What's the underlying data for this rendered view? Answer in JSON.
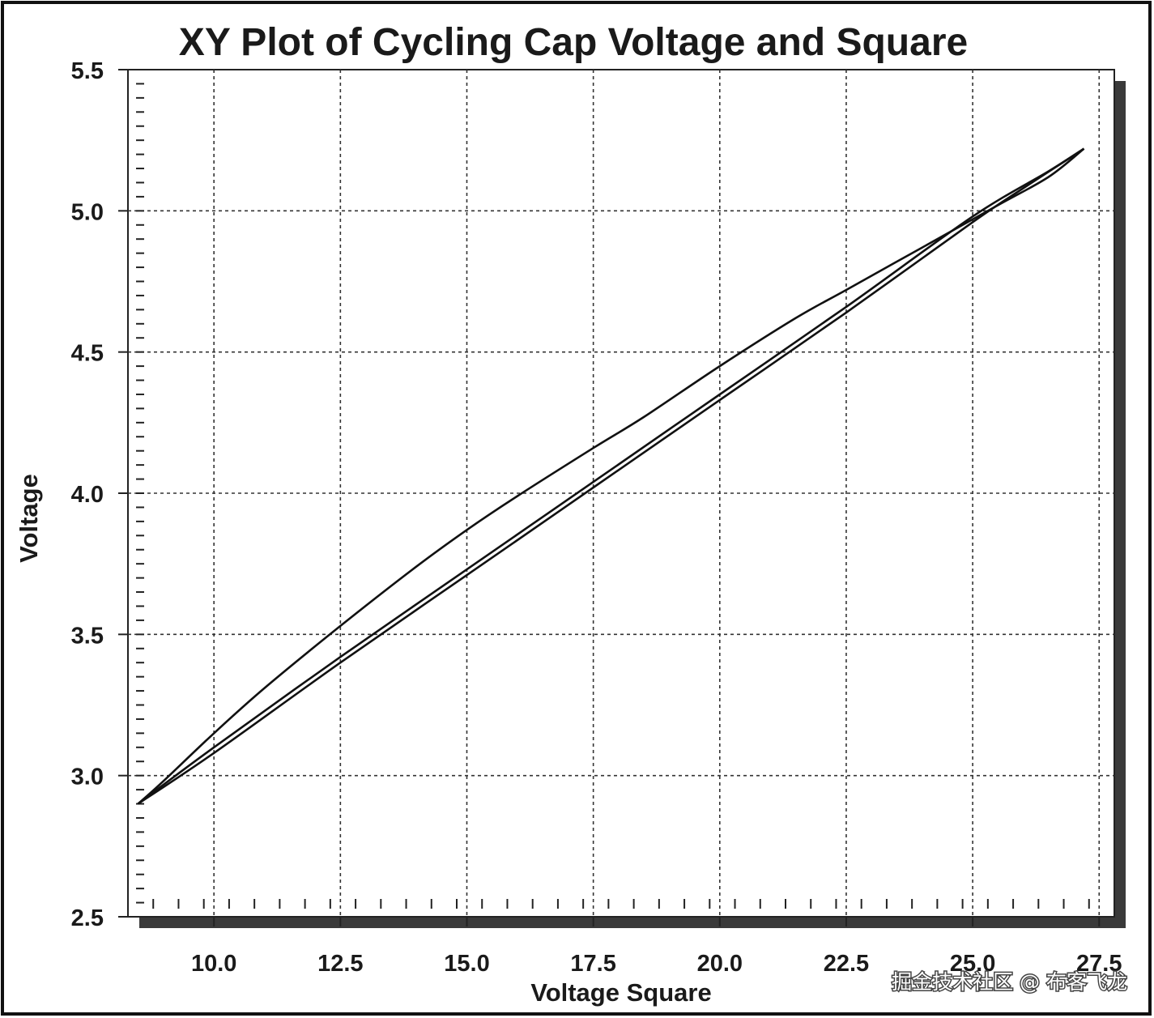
{
  "chart_data": {
    "type": "line",
    "title": "XY Plot of Cycling Cap Voltage and Square",
    "xlabel": "Voltage Square",
    "ylabel": "Voltage",
    "xlim": [
      8.3,
      27.8
    ],
    "ylim": [
      2.5,
      5.5
    ],
    "xticks": [
      "10.0",
      "12.5",
      "15.0",
      "17.5",
      "20.0",
      "22.5",
      "25.0",
      "27.5"
    ],
    "yticks": [
      "2.5",
      "3.0",
      "3.5",
      "4.0",
      "4.5",
      "5.0",
      "5.5"
    ],
    "grid": true,
    "legend": "none",
    "series": [
      {
        "x": [
          8.5,
          9.0,
          10.0,
          11.0,
          12.5,
          14.0,
          15.0,
          16.0,
          17.5,
          18.5,
          20.0,
          21.5,
          22.5,
          24.0,
          25.5,
          26.5,
          27.2
        ],
        "y": [
          2.9,
          2.98,
          3.15,
          3.31,
          3.53,
          3.74,
          3.87,
          3.99,
          4.16,
          4.27,
          4.45,
          4.62,
          4.72,
          4.87,
          5.02,
          5.12,
          5.22
        ]
      },
      {
        "x": [
          27.2,
          26.0,
          25.0,
          22.5,
          20.0,
          17.5,
          15.0,
          12.5,
          10.0,
          8.5
        ],
        "y": [
          5.22,
          5.08,
          4.96,
          4.64,
          4.33,
          4.02,
          3.71,
          3.4,
          3.08,
          2.9
        ]
      },
      {
        "x": [
          8.5,
          10.0,
          12.5,
          15.0,
          17.5,
          20.0,
          22.5,
          25.0,
          26.5,
          27.2
        ],
        "y": [
          2.9,
          3.1,
          3.42,
          3.73,
          4.04,
          4.35,
          4.66,
          4.98,
          5.14,
          5.22
        ]
      }
    ]
  },
  "watermark": "掘金技术社区 @ 布客飞龙"
}
